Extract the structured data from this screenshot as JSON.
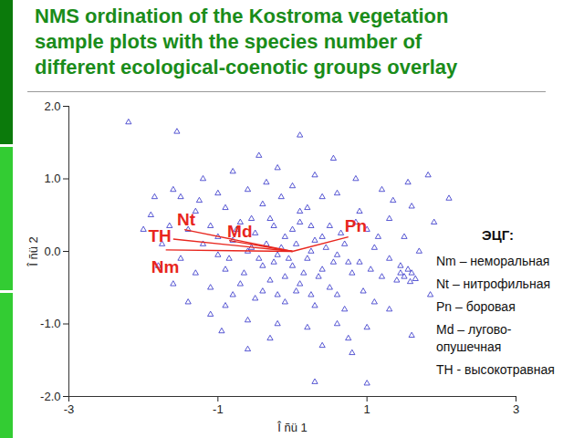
{
  "chart_data": {
    "type": "scatter",
    "title": [
      "NMS ordination of the Kostroma vegetation",
      "sample plots with the species number of",
      "different ecological-coenotic groups overlay"
    ],
    "x_label": "Î ñü 1",
    "y_label": "Î ñü 2",
    "xlim": [
      -3,
      3
    ],
    "ylim": [
      -2,
      2
    ],
    "xticks": [
      -3,
      -1,
      1,
      3
    ],
    "yticks": [
      {
        "value": 2,
        "label": "2.0"
      },
      {
        "value": 1,
        "label": "1.0"
      },
      {
        "value": 0,
        "label": "0.0"
      },
      {
        "value": -1,
        "label": "-1.0"
      },
      {
        "value": -2,
        "label": "-2.0"
      }
    ],
    "grid": false,
    "marker": "triangle",
    "color": "#2f2fc8",
    "points": [
      [
        -2.2,
        1.78
      ],
      [
        -1.55,
        1.65
      ],
      [
        0.1,
        1.6
      ],
      [
        -0.45,
        1.32
      ],
      [
        0.55,
        1.28
      ],
      [
        1.82,
        1.05
      ],
      [
        2.1,
        0.73
      ],
      [
        1.55,
        0.95
      ],
      [
        -1.6,
        0.85
      ],
      [
        -1.5,
        0.75
      ],
      [
        -1.2,
        1.0
      ],
      [
        -0.8,
        1.1
      ],
      [
        -0.2,
        1.15
      ],
      [
        0.3,
        1.05
      ],
      [
        0.85,
        1.0
      ],
      [
        1.2,
        0.85
      ],
      [
        -1.0,
        0.8
      ],
      [
        -0.6,
        0.85
      ],
      [
        0.0,
        0.9
      ],
      [
        0.6,
        0.8
      ],
      [
        1.6,
        0.62
      ],
      [
        1.9,
        0.4
      ],
      [
        -1.9,
        0.5
      ],
      [
        -2.0,
        0.3
      ],
      [
        -1.75,
        0.1
      ],
      [
        -1.3,
        0.55
      ],
      [
        -0.9,
        0.6
      ],
      [
        -0.4,
        0.65
      ],
      [
        0.2,
        0.6
      ],
      [
        0.9,
        0.55
      ],
      [
        1.3,
        0.45
      ],
      [
        -1.4,
        0.3
      ],
      [
        -1.1,
        0.35
      ],
      [
        -0.7,
        0.4
      ],
      [
        -0.3,
        0.45
      ],
      [
        0.1,
        0.4
      ],
      [
        0.5,
        0.35
      ],
      [
        1.0,
        0.3
      ],
      [
        1.5,
        0.2
      ],
      [
        -1.2,
        0.1
      ],
      [
        -0.8,
        0.15
      ],
      [
        -0.5,
        0.25
      ],
      [
        -0.1,
        0.2
      ],
      [
        0.3,
        0.15
      ],
      [
        0.7,
        0.1
      ],
      [
        1.1,
        0.05
      ],
      [
        1.7,
        0.0
      ],
      [
        -1.5,
        -0.1
      ],
      [
        -1.0,
        -0.05
      ],
      [
        -0.6,
        0.0
      ],
      [
        -0.2,
        -0.05
      ],
      [
        0.2,
        -0.1
      ],
      [
        0.6,
        -0.05
      ],
      [
        0.9,
        -0.15
      ],
      [
        1.3,
        -0.1
      ],
      [
        -1.3,
        -0.3
      ],
      [
        -0.9,
        -0.25
      ],
      [
        -0.4,
        -0.2
      ],
      [
        0.0,
        -0.2
      ],
      [
        0.4,
        -0.25
      ],
      [
        0.8,
        -0.3
      ],
      [
        1.2,
        -0.35
      ],
      [
        -1.6,
        -0.45
      ],
      [
        -1.1,
        -0.5
      ],
      [
        -0.7,
        -0.45
      ],
      [
        -0.3,
        -0.4
      ],
      [
        0.1,
        -0.45
      ],
      [
        0.5,
        -0.5
      ],
      [
        0.95,
        -0.55
      ],
      [
        1.45,
        -0.3
      ],
      [
        1.5,
        -0.35
      ],
      [
        1.55,
        -0.25
      ],
      [
        1.6,
        -0.3
      ],
      [
        1.4,
        -0.4
      ],
      [
        1.65,
        -0.38
      ],
      [
        1.45,
        -0.2
      ],
      [
        1.58,
        -0.42
      ],
      [
        -1.4,
        -0.7
      ],
      [
        -0.9,
        -0.75
      ],
      [
        -0.5,
        -0.65
      ],
      [
        -0.1,
        -0.7
      ],
      [
        0.3,
        -0.75
      ],
      [
        0.7,
        -0.8
      ],
      [
        1.1,
        -0.7
      ],
      [
        -1.1,
        -0.87
      ],
      [
        -0.6,
        -0.95
      ],
      [
        -0.2,
        -1.0
      ],
      [
        0.2,
        -1.05
      ],
      [
        0.6,
        -1.0
      ],
      [
        1.0,
        -1.05
      ],
      [
        1.6,
        -1.16
      ],
      [
        -0.6,
        -1.35
      ],
      [
        -0.3,
        -1.2
      ],
      [
        0.4,
        -1.3
      ],
      [
        0.8,
        -1.4
      ],
      [
        0.3,
        -1.8
      ],
      [
        1.0,
        -1.82
      ],
      [
        -1.8,
        -0.2
      ],
      [
        1.85,
        -0.6
      ],
      [
        -0.55,
        0.05
      ],
      [
        -0.35,
        0.1
      ],
      [
        -0.15,
        0.05
      ],
      [
        0.05,
        0.1
      ],
      [
        0.25,
        0.0
      ],
      [
        0.45,
        0.05
      ],
      [
        -0.45,
        -0.1
      ],
      [
        -0.25,
        -0.15
      ],
      [
        -0.05,
        -0.1
      ],
      [
        0.15,
        -0.3
      ],
      [
        0.35,
        -0.35
      ],
      [
        -0.65,
        -0.3
      ],
      [
        -0.85,
        -0.1
      ],
      [
        -0.75,
        0.3
      ],
      [
        -0.55,
        0.45
      ],
      [
        -0.25,
        0.35
      ],
      [
        0.0,
        0.3
      ],
      [
        0.25,
        0.35
      ],
      [
        0.4,
        0.2
      ],
      [
        0.65,
        0.25
      ],
      [
        0.85,
        0.4
      ],
      [
        -1.0,
        0.2
      ],
      [
        -1.25,
        0.7
      ],
      [
        -0.15,
        0.75
      ],
      [
        0.4,
        0.75
      ],
      [
        -0.4,
        -0.55
      ],
      [
        -0.2,
        -0.6
      ],
      [
        0.05,
        -0.55
      ],
      [
        0.25,
        -0.6
      ],
      [
        0.6,
        -0.6
      ],
      [
        -0.8,
        -0.6
      ],
      [
        0.75,
        -0.15
      ],
      [
        1.05,
        -0.25
      ],
      [
        1.15,
        0.2
      ],
      [
        -1.65,
        0.35
      ],
      [
        -1.85,
        0.75
      ],
      [
        -0.35,
        0.95
      ],
      [
        0.75,
        -1.2
      ],
      [
        1.3,
        -0.8
      ],
      [
        1.35,
        0.7
      ],
      [
        -0.95,
        -1.1
      ],
      [
        0.1,
        0.55
      ],
      [
        -0.1,
        -0.35
      ],
      [
        0.55,
        -0.15
      ]
    ],
    "vector_color": "#e8261e",
    "vectors": [
      {
        "name": "TH",
        "x0": 0,
        "y0": 0,
        "x": -1.6,
        "y": 0.17
      },
      {
        "name": "Nt",
        "x0": 0,
        "y0": 0,
        "x": -1.45,
        "y": 0.3
      },
      {
        "name": "Md",
        "x0": 0,
        "y0": 0,
        "x": -0.85,
        "y": 0.15
      },
      {
        "name": "Pn",
        "x0": 0,
        "y0": 0,
        "x": 0.75,
        "y": 0.2
      },
      {
        "name": "Nm",
        "x0": 0,
        "y0": 0,
        "x": -1.7,
        "y": 0.02
      }
    ],
    "group_legend": {
      "title": "ЭЦГ:",
      "items": [
        "Nm – неморальная",
        "Nt – нитрофильная",
        "Pn – боровая",
        "Md – лугово-опушечная",
        "TH - высокотравная"
      ]
    }
  }
}
